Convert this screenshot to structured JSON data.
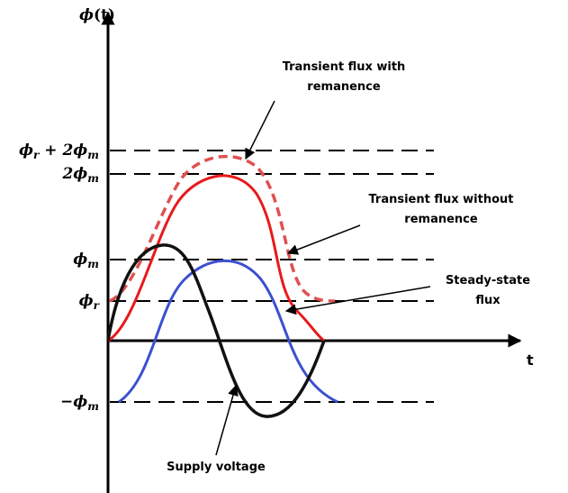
{
  "axes": {
    "y_label": [
      {
        "text": "ϕ",
        "italic": true
      },
      {
        "text": "(t)"
      }
    ],
    "x_label": "t"
  },
  "levels": [
    {
      "label": [
        {
          "text": "ϕ"
        },
        {
          "text": "r",
          "sub": true
        },
        {
          "text": " + 2ϕ"
        },
        {
          "text": "m",
          "sub": true
        }
      ]
    },
    {
      "label": [
        {
          "text": "2ϕ"
        },
        {
          "text": "m",
          "sub": true
        }
      ]
    },
    {
      "label": [
        {
          "text": "ϕ"
        },
        {
          "text": "m",
          "sub": true
        }
      ]
    },
    {
      "label": [
        {
          "text": "ϕ"
        },
        {
          "text": "r",
          "sub": true
        }
      ]
    },
    {
      "label": [
        {
          "text": "−ϕ"
        },
        {
          "text": "m",
          "sub": true
        }
      ]
    }
  ],
  "annotations": [
    {
      "lines": [
        "Transient flux with",
        "remanence"
      ]
    },
    {
      "lines": [
        "Transient flux without",
        "remanence"
      ]
    },
    {
      "lines": [
        "Steady-state",
        "flux"
      ]
    },
    {
      "lines": [
        "Supply voltage"
      ]
    }
  ]
}
